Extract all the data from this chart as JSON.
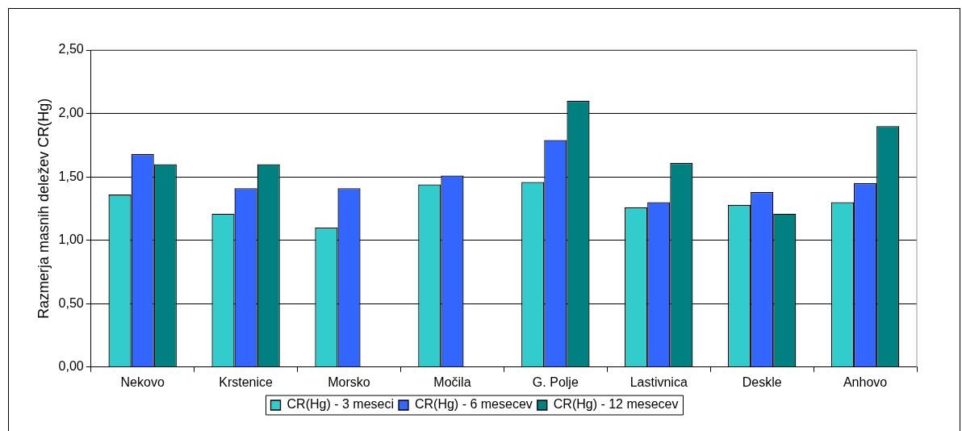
{
  "chart_data": {
    "type": "bar",
    "ylabel": "Razmerja masnih deležev CR(Hg)",
    "categories": [
      "Nekovo",
      "Krstenice",
      "Morsko",
      "Močila",
      "G. Polje",
      "Lastivnica",
      "Deskle",
      "Anhovo"
    ],
    "series": [
      {
        "name": "CR(Hg) - 3 meseci",
        "color": "#33cccc",
        "values": [
          1.36,
          1.21,
          1.1,
          1.44,
          1.46,
          1.26,
          1.28,
          1.3
        ]
      },
      {
        "name": "CR(Hg) - 6 mesecev",
        "color": "#3366ff",
        "values": [
          1.68,
          1.41,
          1.41,
          1.51,
          1.79,
          1.3,
          1.38,
          1.45
        ]
      },
      {
        "name": "CR(Hg) - 12 mesecev",
        "color": "#008080",
        "values": [
          1.6,
          1.6,
          null,
          null,
          2.1,
          1.61,
          1.21,
          1.9
        ]
      }
    ],
    "ylim": [
      0,
      2.5
    ],
    "yticks": [
      {
        "value": 0,
        "label": "0,00"
      },
      {
        "value": 0.5,
        "label": "0,50"
      },
      {
        "value": 1,
        "label": "1,00"
      },
      {
        "value": 1.5,
        "label": "1,50"
      },
      {
        "value": 2,
        "label": "2,00"
      },
      {
        "value": 2.5,
        "label": "2,50"
      }
    ],
    "grid": "y",
    "legend": "bottom"
  }
}
